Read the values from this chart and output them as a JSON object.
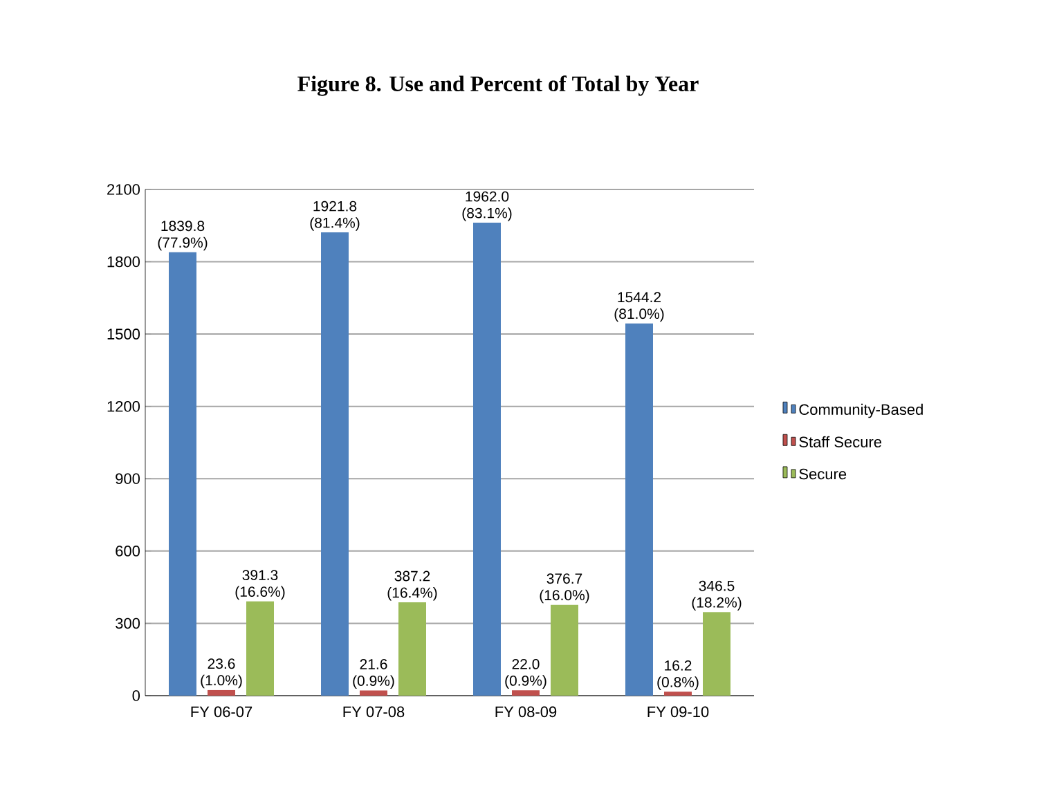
{
  "chart_data": {
    "type": "bar",
    "title": "Figure 8. Use and Percent of Total by Year",
    "categories": [
      "FY 06-07",
      "FY 07-08",
      "FY 08-09",
      "FY 09-10"
    ],
    "series": [
      {
        "name": "Community-Based",
        "color": "#4f81bd",
        "values": [
          1839.8,
          1921.8,
          1962.0,
          1544.2
        ],
        "value_labels": [
          "1839.8 (77.9%)",
          "1921.8 (81.4%)",
          "1962.0 (83.1%)",
          "1544.2 (81.0%)"
        ]
      },
      {
        "name": "Staff Secure",
        "color": "#c0504d",
        "values": [
          23.6,
          21.6,
          22.0,
          16.2
        ],
        "value_labels": [
          "23.6 (1.0%)",
          "21.6 (0.9%)",
          "22.0 (0.9%)",
          "16.2 (0.8%)"
        ]
      },
      {
        "name": "Secure",
        "color": "#9bbb59",
        "values": [
          391.3,
          387.2,
          376.7,
          346.5
        ],
        "value_labels": [
          "391.3 (16.6%)",
          "387.2 (16.4%)",
          "376.7 (16.0%)",
          "346.5 (18.2%)"
        ]
      }
    ],
    "ylim": [
      0,
      2100
    ],
    "yticks": [
      0,
      300,
      600,
      900,
      1200,
      1500,
      1800,
      2100
    ],
    "grid": "y",
    "legend": "right"
  }
}
